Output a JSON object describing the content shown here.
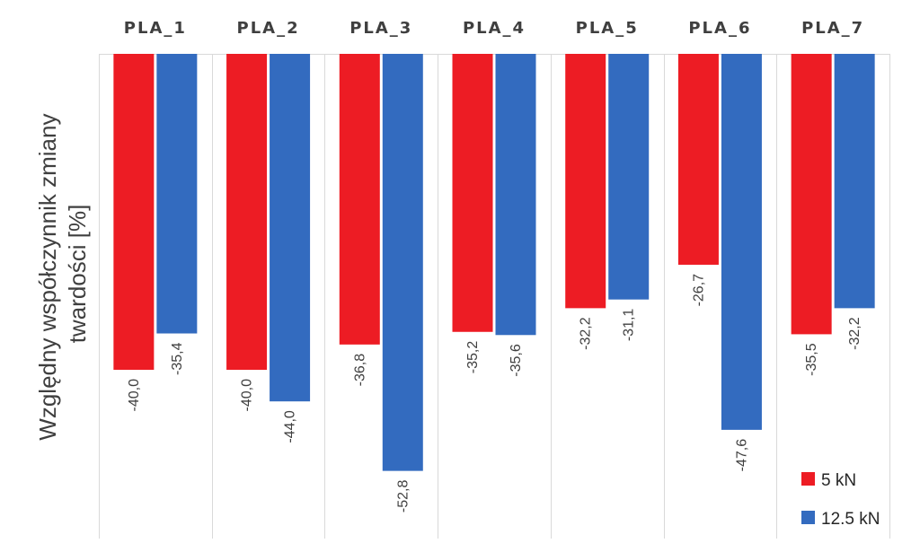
{
  "chart_data": {
    "type": "bar",
    "categories": [
      "PLA_1",
      "PLA_2",
      "PLA_3",
      "PLA_4",
      "PLA_5",
      "PLA_6",
      "PLA_7"
    ],
    "series": [
      {
        "name": "5 kN",
        "color": "#ed1c24",
        "values": [
          -40.0,
          -40.0,
          -36.8,
          -35.2,
          -32.2,
          -26.7,
          -35.5
        ],
        "labels": [
          "-40,0",
          "-40,0",
          "-36,8",
          "-35,2",
          "-32,2",
          "-26,7",
          "-35,5"
        ]
      },
      {
        "name": "12.5 kN",
        "color": "#336bbf",
        "values": [
          -35.4,
          -44.0,
          -52.8,
          -35.6,
          -31.1,
          -47.6,
          -32.2
        ],
        "labels": [
          "-35,4",
          "-44,0",
          "-52,8",
          "-35,6",
          "-31,1",
          "-47,6",
          "-32,2"
        ]
      }
    ],
    "title": "",
    "xlabel": "",
    "ylabel": "Względny współczynnik zmiany twardości [%]",
    "ylabel_lines": [
      "Względny współczynnik zmiany",
      "twardości [%]"
    ],
    "ylim": [
      -60,
      0
    ],
    "x_axis_position": "top",
    "grid": "vertical separators between categories",
    "legend_position": "bottom-right"
  }
}
